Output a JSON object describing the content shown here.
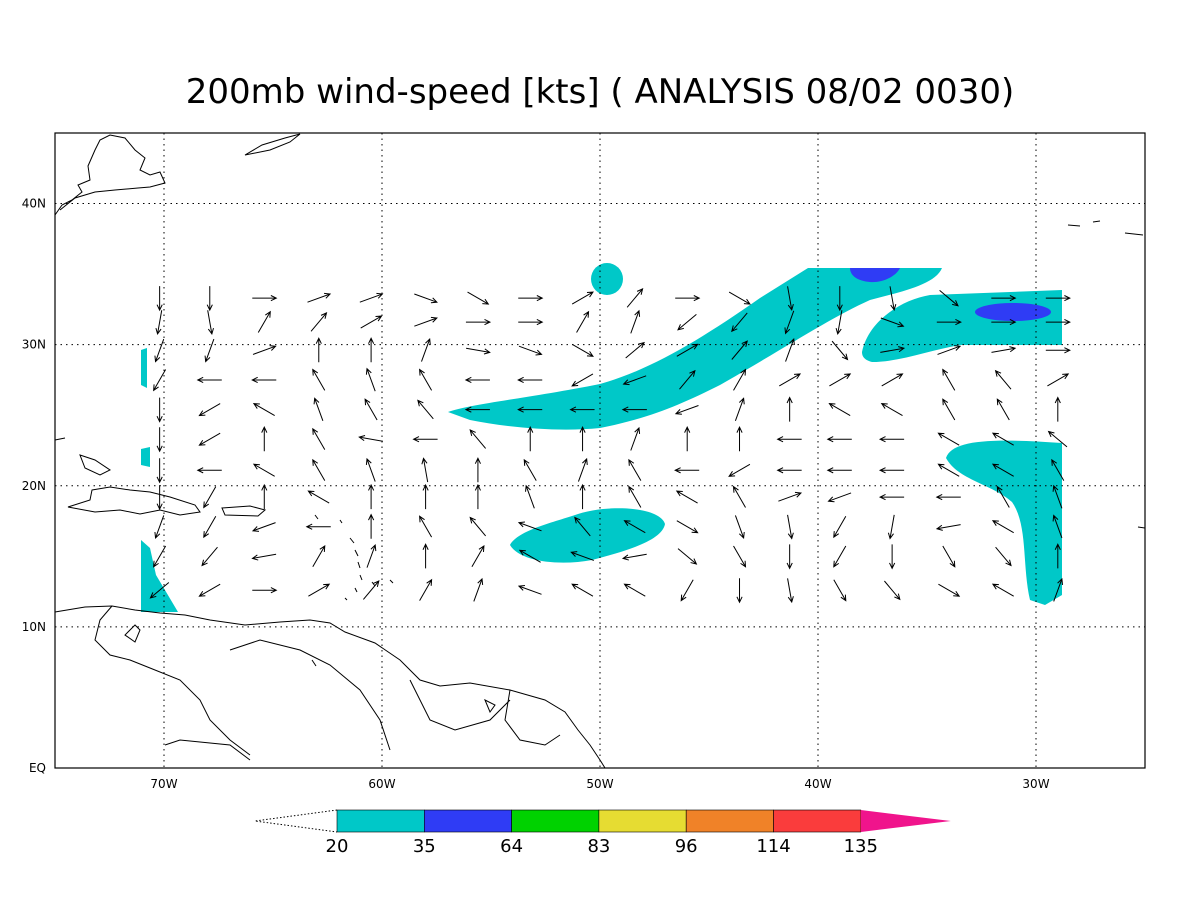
{
  "chart_data": {
    "type": "map",
    "title": "200mb wind-speed [kts] ( ANALYSIS 08/02 0030)",
    "xlim": [
      -75,
      -25
    ],
    "ylim": [
      0,
      45
    ],
    "xticks": [
      {
        "value": -70,
        "label": "70W"
      },
      {
        "value": -60,
        "label": "60W"
      },
      {
        "value": -50,
        "label": "50W"
      },
      {
        "value": -40,
        "label": "40W"
      },
      {
        "value": -30,
        "label": "30W"
      }
    ],
    "yticks": [
      {
        "value": 0,
        "label": "EQ"
      },
      {
        "value": 10,
        "label": "10N"
      },
      {
        "value": 20,
        "label": "20N"
      },
      {
        "value": 30,
        "label": "30N"
      },
      {
        "value": 40,
        "label": "40N"
      }
    ],
    "grid": true,
    "colorbar": {
      "levels": [
        20,
        35,
        64,
        83,
        96,
        114,
        135
      ],
      "colors": [
        "#00c8c8",
        "#2f3cf5",
        "#00d200",
        "#e6dc32",
        "#f08228",
        "#fa3c3c",
        "#f0148c"
      ]
    },
    "wind": {
      "lon": [
        -70.2,
        -67.9,
        -65.4,
        -62.9,
        -60.5,
        -58.0,
        -55.6,
        -53.2,
        -50.8,
        -48.4,
        -46.0,
        -43.6,
        -41.3,
        -39.0,
        -36.6,
        -34.0,
        -31.5,
        -29.0
      ],
      "lat": [
        33.3,
        31.6,
        29.6,
        27.5,
        25.4,
        23.3,
        21.1,
        19.2,
        17.1,
        15.0,
        12.6
      ],
      "direction": [
        [
          180,
          180,
          90,
          70,
          70,
          110,
          120,
          90,
          60,
          40,
          90,
          120,
          170,
          180,
          170,
          130,
          90,
          90
        ],
        [
          190,
          170,
          30,
          40,
          60,
          70,
          90,
          90,
          30,
          20,
          230,
          220,
          200,
          190,
          110,
          90,
          90,
          90
        ],
        [
          200,
          200,
          70,
          0,
          0,
          20,
          100,
          110,
          120,
          50,
          60,
          40,
          20,
          140,
          80,
          70,
          80,
          90
        ],
        [
          210,
          270,
          270,
          330,
          340,
          330,
          270,
          270,
          240,
          250,
          40,
          30,
          60,
          60,
          60,
          330,
          320,
          60
        ],
        [
          180,
          240,
          300,
          340,
          330,
          320,
          270,
          270,
          270,
          270,
          250,
          20,
          0,
          300,
          300,
          330,
          330,
          0
        ],
        [
          180,
          240,
          0,
          330,
          280,
          270,
          320,
          0,
          0,
          20,
          0,
          0,
          270,
          270,
          270,
          300,
          300,
          310
        ],
        [
          180,
          270,
          300,
          330,
          340,
          350,
          0,
          330,
          20,
          330,
          270,
          240,
          270,
          270,
          270,
          300,
          300,
          330
        ],
        [
          180,
          210,
          0,
          300,
          0,
          0,
          0,
          340,
          0,
          330,
          300,
          330,
          70,
          250,
          270,
          270,
          330,
          340
        ],
        [
          200,
          210,
          250,
          270,
          0,
          330,
          320,
          290,
          320,
          300,
          120,
          160,
          170,
          210,
          190,
          260,
          300,
          340
        ],
        [
          210,
          220,
          260,
          30,
          20,
          0,
          30,
          300,
          290,
          260,
          130,
          150,
          180,
          210,
          180,
          150,
          140,
          0
        ],
        [
          230,
          240,
          90,
          60,
          40,
          30,
          20,
          290,
          300,
          300,
          210,
          180,
          170,
          150,
          140,
          120,
          300,
          20
        ]
      ]
    }
  }
}
